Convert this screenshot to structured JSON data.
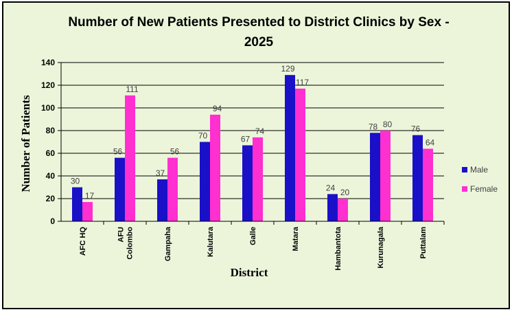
{
  "colors": {
    "male": "#1a10c8",
    "female": "#ff2fd0",
    "background": "#ecf5da"
  },
  "chart_data": {
    "type": "bar",
    "title_line1": "Number of New Patients Presented to District Clinics by Sex -",
    "title_line2": "2025",
    "xlabel": "District",
    "ylabel": "Number of Patients",
    "ylim": [
      0,
      140
    ],
    "yticks": [
      "0",
      "20",
      "40",
      "60",
      "80",
      "100",
      "120",
      "140"
    ],
    "grid": true,
    "legend_position": "right",
    "categories": [
      [
        "AFC HQ"
      ],
      [
        "AFU",
        "Colombo"
      ],
      [
        "Gampaha"
      ],
      [
        "Kalutara"
      ],
      [
        "Galle"
      ],
      [
        "Matara"
      ],
      [
        "Hambantota"
      ],
      [
        "Kurunagala"
      ],
      [
        "Puttalam"
      ]
    ],
    "series": [
      {
        "name": "Male",
        "values": [
          30,
          56,
          37,
          70,
          67,
          129,
          24,
          78,
          76
        ]
      },
      {
        "name": "Female",
        "values": [
          17,
          111,
          56,
          94,
          74,
          117,
          20,
          80,
          64
        ]
      }
    ]
  }
}
